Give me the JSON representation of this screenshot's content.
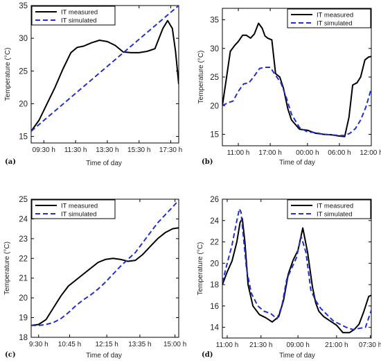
{
  "chart_data": [
    {
      "type": "line",
      "panel_label": "(a)",
      "xlabel": "Time of day",
      "ylabel": "Temperature (°C)",
      "ylim": [
        14,
        35
      ],
      "yticks": [
        15,
        20,
        25,
        30,
        35
      ],
      "xlim": [
        8.7,
        18.0
      ],
      "xticks": [
        {
          "value": 9.5,
          "label": "09:30 h"
        },
        {
          "value": 11.5,
          "label": "11:30 h"
        },
        {
          "value": 13.5,
          "label": "13:30 h"
        },
        {
          "value": 15.5,
          "label": "15:30 h"
        },
        {
          "value": 17.5,
          "label": "17:30 h"
        }
      ],
      "legend_position": "top-left",
      "series": [
        {
          "name": "IT measured",
          "color": "#000000",
          "dash": "solid",
          "x": [
            8.7,
            9.2,
            9.7,
            10.2,
            10.7,
            11.2,
            11.6,
            12.0,
            12.5,
            13.0,
            13.5,
            14.0,
            14.5,
            15.0,
            15.5,
            16.0,
            16.5,
            17.0,
            17.3,
            17.6,
            17.8,
            18.0
          ],
          "y": [
            15.8,
            17.5,
            20.0,
            22.5,
            25.3,
            27.8,
            28.6,
            28.8,
            29.3,
            29.7,
            29.5,
            28.9,
            27.9,
            27.8,
            27.8,
            28.0,
            28.4,
            31.5,
            32.7,
            31.5,
            28.0,
            23.0
          ]
        },
        {
          "name": "IT simulated",
          "color": "#1f2fd0",
          "dash": "dashed",
          "x": [
            8.7,
            18.0
          ],
          "y": [
            15.8,
            35.0
          ]
        }
      ]
    },
    {
      "type": "line",
      "panel_label": "(b)",
      "xlabel": "Time of day",
      "ylabel": "Temperature (°C)",
      "ylim": [
        13,
        37
      ],
      "yticks": [
        15,
        20,
        25,
        30,
        35
      ],
      "xlim": [
        8,
        36
      ],
      "xticks": [
        {
          "value": 11,
          "label": "11:00 h"
        },
        {
          "value": 17,
          "label": "17:00 h"
        },
        {
          "value": 24,
          "label": "00:00 h"
        },
        {
          "value": 30,
          "label": "06:00 h"
        },
        {
          "value": 36,
          "label": "12:00 h"
        }
      ],
      "legend_position": "top-right",
      "series": [
        {
          "name": "IT measured",
          "color": "#000000",
          "dash": "solid",
          "x": [
            8,
            8.8,
            9.5,
            10.3,
            11.0,
            11.8,
            12.5,
            13.3,
            14.0,
            14.8,
            15.5,
            16.0,
            16.5,
            17.3,
            18.0,
            18.8,
            19.5,
            20.3,
            21.0,
            22.5,
            24.0,
            25.5,
            27.0,
            28.5,
            30.0,
            31.0,
            31.8,
            32.5,
            33.3,
            34.0,
            34.8,
            35.5,
            36.0
          ],
          "y": [
            20.0,
            25.0,
            29.5,
            30.5,
            31.2,
            32.3,
            32.3,
            31.8,
            32.5,
            34.4,
            33.5,
            32.2,
            31.8,
            31.5,
            25.6,
            25.0,
            23.0,
            19.5,
            17.5,
            15.9,
            15.7,
            15.2,
            15.0,
            14.9,
            14.7,
            14.6,
            18.0,
            23.6,
            24.0,
            25.0,
            28.0,
            28.5,
            28.6
          ]
        },
        {
          "name": "IT simulated",
          "color": "#1f2fd0",
          "dash": "dashed",
          "x": [
            8,
            9.0,
            10.0,
            11.0,
            12.0,
            13.0,
            14.0,
            15.0,
            16.0,
            17.0,
            18.0,
            19.0,
            20.0,
            21.0,
            22.5,
            24.0,
            25.5,
            27.0,
            28.5,
            30.0,
            31.0,
            32.0,
            33.0,
            34.0,
            35.0,
            36.0
          ],
          "y": [
            20.0,
            20.5,
            20.8,
            22.5,
            23.8,
            24.0,
            25.2,
            26.5,
            26.7,
            26.7,
            25.3,
            24.0,
            21.5,
            18.5,
            16.2,
            15.4,
            15.3,
            15.0,
            14.9,
            14.8,
            14.8,
            15.2,
            16.0,
            17.5,
            19.8,
            23.0
          ]
        }
      ]
    },
    {
      "type": "line",
      "panel_label": "(c)",
      "xlabel": "Time of day",
      "ylabel": "Temperature (°C)",
      "ylim": [
        18,
        25
      ],
      "yticks": [
        18,
        19,
        20,
        21,
        22,
        23,
        24,
        25
      ],
      "xlim": [
        9.2,
        15.15
      ],
      "xticks": [
        {
          "value": 9.5,
          "label": "9:30 h"
        },
        {
          "value": 10.75,
          "label": "10:45 h"
        },
        {
          "value": 12.25,
          "label": "12:15 h"
        },
        {
          "value": 13.583,
          "label": "13:35 h"
        },
        {
          "value": 15.0,
          "label": "15:00 h"
        }
      ],
      "legend_position": "top-left",
      "series": [
        {
          "name": "IT measured",
          "color": "#000000",
          "dash": "solid",
          "x": [
            9.2,
            9.5,
            9.8,
            10.1,
            10.4,
            10.7,
            11.0,
            11.3,
            11.6,
            11.9,
            12.2,
            12.5,
            12.8,
            13.1,
            13.4,
            13.7,
            14.0,
            14.3,
            14.6,
            14.9,
            15.15
          ],
          "y": [
            18.6,
            18.65,
            18.9,
            19.5,
            20.1,
            20.6,
            20.9,
            21.2,
            21.5,
            21.8,
            21.95,
            22.0,
            21.95,
            21.85,
            21.9,
            22.2,
            22.6,
            23.0,
            23.3,
            23.5,
            23.55
          ]
        },
        {
          "name": "IT simulated",
          "color": "#1f2fd0",
          "dash": "dashed",
          "x": [
            9.2,
            9.5,
            9.8,
            10.1,
            10.4,
            10.7,
            11.0,
            11.3,
            11.6,
            11.9,
            12.2,
            12.5,
            12.8,
            13.1,
            13.4,
            13.7,
            14.0,
            14.3,
            14.6,
            14.9,
            15.15
          ],
          "y": [
            18.6,
            18.6,
            18.65,
            18.75,
            18.95,
            19.25,
            19.6,
            19.9,
            20.15,
            20.45,
            20.8,
            21.2,
            21.6,
            21.95,
            22.3,
            22.8,
            23.3,
            23.8,
            24.2,
            24.6,
            24.95
          ]
        }
      ]
    },
    {
      "type": "line",
      "panel_label": "(d)",
      "xlabel": "Time of day",
      "ylabel": "Temperature (°C)",
      "ylim": [
        13,
        26
      ],
      "yticks": [
        14,
        16,
        18,
        20,
        22,
        24,
        26
      ],
      "xlim": [
        9.5,
        55.8
      ],
      "xticks": [
        {
          "value": 11,
          "label": "11:00 h"
        },
        {
          "value": 21.5,
          "label": "21:30 h"
        },
        {
          "value": 33,
          "label": "09:00 h"
        },
        {
          "value": 45,
          "label": "21:00 h"
        },
        {
          "value": 55.5,
          "label": "07:30 h"
        }
      ],
      "legend_position": "top-right",
      "series": [
        {
          "name": "IT measured",
          "color": "#000000",
          "dash": "solid",
          "x": [
            9.5,
            11.0,
            12.5,
            14.0,
            15.0,
            15.7,
            16.5,
            17.5,
            19.0,
            21.0,
            23.0,
            25.0,
            27.0,
            28.5,
            30.0,
            31.5,
            33.0,
            34.5,
            36.0,
            37.5,
            38.5,
            39.5,
            41.0,
            43.0,
            45.0,
            47.0,
            49.0,
            50.5,
            52.0,
            53.5,
            55.0,
            55.8
          ],
          "y": [
            18.0,
            19.2,
            20.2,
            22.0,
            23.8,
            24.2,
            22.0,
            18.0,
            16.0,
            15.2,
            14.9,
            14.5,
            15.0,
            16.5,
            19.0,
            20.3,
            21.2,
            23.3,
            21.0,
            17.8,
            16.3,
            15.5,
            15.0,
            14.6,
            14.2,
            13.5,
            13.5,
            13.8,
            14.3,
            15.5,
            16.9,
            17.0
          ]
        },
        {
          "name": "IT simulated",
          "color": "#1f2fd0",
          "dash": "dashed",
          "x": [
            9.5,
            11.0,
            12.5,
            14.0,
            14.8,
            15.3,
            16.0,
            17.0,
            18.5,
            20.5,
            22.5,
            24.5,
            26.5,
            28.0,
            29.5,
            31.0,
            32.5,
            34.0,
            35.5,
            37.0,
            38.5,
            40.0,
            42.0,
            44.0,
            46.0,
            48.0,
            50.0,
            52.0,
            54.0,
            55.8
          ],
          "y": [
            18.2,
            20.0,
            21.7,
            24.0,
            25.1,
            24.8,
            22.6,
            19.5,
            17.2,
            16.0,
            15.5,
            15.3,
            14.8,
            16.0,
            18.5,
            19.5,
            20.5,
            22.5,
            21.0,
            17.5,
            16.5,
            15.8,
            15.2,
            14.6,
            14.3,
            14.0,
            13.8,
            13.9,
            14.0,
            15.6
          ]
        }
      ]
    }
  ]
}
